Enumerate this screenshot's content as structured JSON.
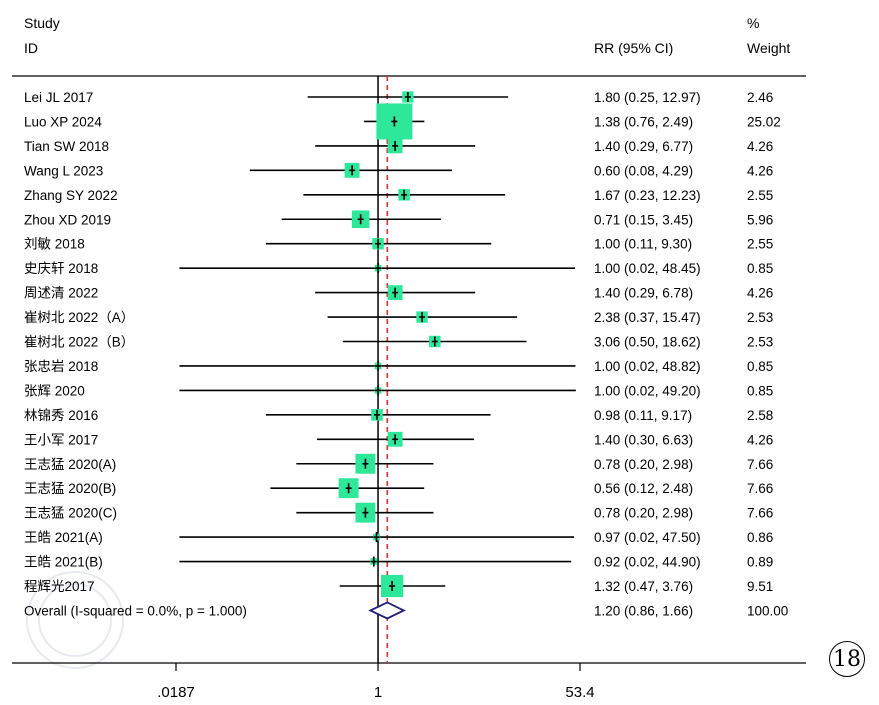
{
  "header": {
    "study_label": "Study",
    "id_label": "ID",
    "rr_label": "RR (95% CI)",
    "weight_pct_label": "%",
    "weight_label": "Weight"
  },
  "panel_number": "18",
  "watermark_text": "CHINESE MEDICAL ASSOCIATION",
  "colors": {
    "box": "#2ee89a",
    "null_line": "#000000",
    "overall_line": "#e0302a",
    "diamond": "#1b1f7a"
  },
  "chart_data": {
    "type": "forest",
    "scale": "log",
    "xlim": [
      0.0187,
      53.4
    ],
    "xticks": [
      ".0187",
      "1",
      "53.4"
    ],
    "xtick_values": [
      0.0187,
      1,
      53.4
    ],
    "null_value": 1,
    "overall_value": 1.2,
    "studies": [
      {
        "id": "Lei JL 2017",
        "rr": 1.8,
        "lo": 0.25,
        "hi": 12.97,
        "ci_text": "1.80 (0.25, 12.97)",
        "weight": 2.46,
        "weight_text": "2.46"
      },
      {
        "id": "Luo XP 2024",
        "rr": 1.38,
        "lo": 0.76,
        "hi": 2.49,
        "ci_text": "1.38 (0.76, 2.49)",
        "weight": 25.02,
        "weight_text": "25.02"
      },
      {
        "id": "Tian SW 2018",
        "rr": 1.4,
        "lo": 0.29,
        "hi": 6.77,
        "ci_text": "1.40 (0.29, 6.77)",
        "weight": 4.26,
        "weight_text": "4.26"
      },
      {
        "id": "Wang L 2023",
        "rr": 0.6,
        "lo": 0.08,
        "hi": 4.29,
        "ci_text": "0.60 (0.08, 4.29)",
        "weight": 4.26,
        "weight_text": "4.26"
      },
      {
        "id": "Zhang SY 2022",
        "rr": 1.67,
        "lo": 0.23,
        "hi": 12.23,
        "ci_text": "1.67 (0.23, 12.23)",
        "weight": 2.55,
        "weight_text": "2.55"
      },
      {
        "id": "Zhou XD 2019",
        "rr": 0.71,
        "lo": 0.15,
        "hi": 3.45,
        "ci_text": "0.71 (0.15, 3.45)",
        "weight": 5.96,
        "weight_text": "5.96"
      },
      {
        "id": "刘敏 2018",
        "rr": 1.0,
        "lo": 0.11,
        "hi": 9.3,
        "ci_text": "1.00 (0.11, 9.30)",
        "weight": 2.55,
        "weight_text": "2.55"
      },
      {
        "id": "史庆轩 2018",
        "rr": 1.0,
        "lo": 0.02,
        "hi": 48.45,
        "ci_text": "1.00 (0.02, 48.45)",
        "weight": 0.85,
        "weight_text": "0.85"
      },
      {
        "id": "周述清 2022",
        "rr": 1.4,
        "lo": 0.29,
        "hi": 6.78,
        "ci_text": "1.40 (0.29, 6.78)",
        "weight": 4.26,
        "weight_text": "4.26"
      },
      {
        "id": "崔树北 2022（A）",
        "rr": 2.38,
        "lo": 0.37,
        "hi": 15.47,
        "ci_text": "2.38 (0.37, 15.47)",
        "weight": 2.53,
        "weight_text": "2.53"
      },
      {
        "id": "崔树北 2022（B）",
        "rr": 3.06,
        "lo": 0.5,
        "hi": 18.62,
        "ci_text": "3.06 (0.50, 18.62)",
        "weight": 2.53,
        "weight_text": "2.53"
      },
      {
        "id": "张忠岩 2018",
        "rr": 1.0,
        "lo": 0.02,
        "hi": 48.82,
        "ci_text": "1.00 (0.02, 48.82)",
        "weight": 0.85,
        "weight_text": "0.85"
      },
      {
        "id": "张辉 2020",
        "rr": 1.0,
        "lo": 0.02,
        "hi": 49.2,
        "ci_text": "1.00 (0.02, 49.20)",
        "weight": 0.85,
        "weight_text": "0.85"
      },
      {
        "id": "林锦秀 2016",
        "rr": 0.98,
        "lo": 0.11,
        "hi": 9.17,
        "ci_text": "0.98 (0.11, 9.17)",
        "weight": 2.58,
        "weight_text": "2.58"
      },
      {
        "id": "王小军 2017",
        "rr": 1.4,
        "lo": 0.3,
        "hi": 6.63,
        "ci_text": "1.40 (0.30, 6.63)",
        "weight": 4.26,
        "weight_text": "4.26"
      },
      {
        "id": "王志猛 2020(A)",
        "rr": 0.78,
        "lo": 0.2,
        "hi": 2.98,
        "ci_text": "0.78 (0.20, 2.98)",
        "weight": 7.66,
        "weight_text": "7.66"
      },
      {
        "id": "王志猛 2020(B)",
        "rr": 0.56,
        "lo": 0.12,
        "hi": 2.48,
        "ci_text": "0.56 (0.12, 2.48)",
        "weight": 7.66,
        "weight_text": "7.66"
      },
      {
        "id": "王志猛 2020(C)",
        "rr": 0.78,
        "lo": 0.2,
        "hi": 2.98,
        "ci_text": "0.78 (0.20, 2.98)",
        "weight": 7.66,
        "weight_text": "7.66"
      },
      {
        "id": "王皓 2021(A)",
        "rr": 0.97,
        "lo": 0.02,
        "hi": 47.5,
        "ci_text": "0.97 (0.02, 47.50)",
        "weight": 0.86,
        "weight_text": "0.86"
      },
      {
        "id": "王皓 2021(B)",
        "rr": 0.92,
        "lo": 0.02,
        "hi": 44.9,
        "ci_text": "0.92 (0.02, 44.90)",
        "weight": 0.89,
        "weight_text": "0.89"
      },
      {
        "id": "程辉光2017",
        "rr": 1.32,
        "lo": 0.47,
        "hi": 3.76,
        "ci_text": "1.32 (0.47, 3.76)",
        "weight": 9.51,
        "weight_text": "9.51"
      }
    ],
    "overall": {
      "label": "Overall  (I-squared = 0.0%, p = 1.000)",
      "rr": 1.2,
      "lo": 0.86,
      "hi": 1.66,
      "ci_text": "1.20 (0.86, 1.66)",
      "weight_text": "100.00"
    }
  }
}
